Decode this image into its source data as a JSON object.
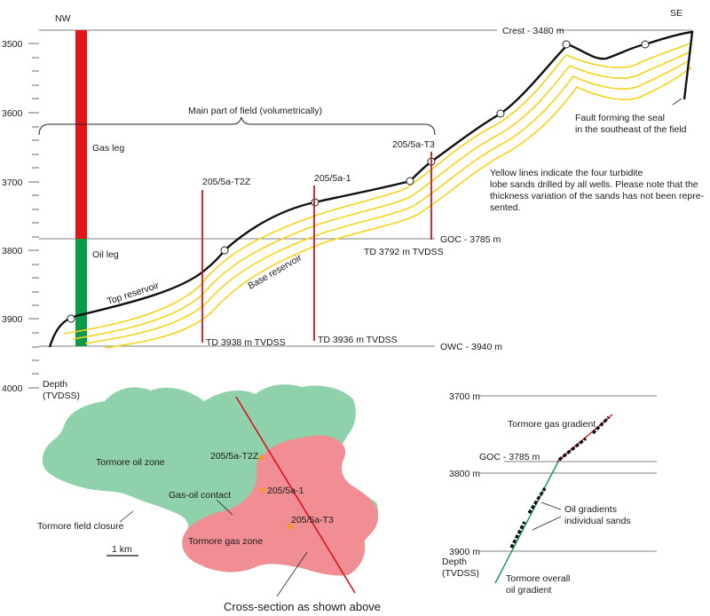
{
  "section": {
    "nw": "NW",
    "se": "SE",
    "depth_ticks": [
      "3500",
      "3600",
      "3700",
      "3800",
      "3900",
      "4000"
    ],
    "depth_label_1": "Depth",
    "depth_label_2": "(TVDSS)",
    "crest": "Crest - 3480 m",
    "goc": "GOC - 3785 m",
    "owc": "OWC - 3940 m",
    "main_part": "Main part of field (volumetrically)",
    "gas_leg": "Gas leg",
    "oil_leg": "Oil leg",
    "top_reservoir": "Top reservoir",
    "base_reservoir": "Base reservoir",
    "fault_1": "Fault forming the seal",
    "fault_2": "in the southeast of the field",
    "note_1": "Yellow lines indicate the four turbidite",
    "note_2": "lobe sands drilled by all wells. Please note that the",
    "note_3": "thickness variation of the sands has not been repre-",
    "note_4": "sented.",
    "wells": [
      {
        "name": "205/5a-T2Z",
        "td": "TD 3938 m TVDSS"
      },
      {
        "name": "205/5a-1",
        "td": "TD 3936 m TVDSS"
      },
      {
        "name": "205/5a-T3",
        "td": "TD 3792 m TVDSS"
      }
    ],
    "colors": {
      "gas": "#e3151b",
      "oil": "#0b9a48",
      "sand": "#f5d31b",
      "well": "#d7141e"
    }
  },
  "map": {
    "oil_zone": "Tormore oil zone",
    "gas_zone": "Tormore gas zone",
    "gas_oil_contact": "Gas-oil contact",
    "closure": "Tormore field closure",
    "scale": "1 km",
    "cross_section": "Cross-section as shown above",
    "wells": [
      "205/5a-T2Z",
      "205/5a-1",
      "205/5a-T3"
    ],
    "colors": {
      "oil": "#8fd1aa",
      "gas": "#f08e93"
    }
  },
  "gradient": {
    "ticks": [
      "3700 m",
      "3800 m",
      "3900 m"
    ],
    "goc": "GOC - 3785 m",
    "gas_gradient": "Tormore gas gradient",
    "oil_gradients_1": "Oil gradients",
    "oil_gradients_2": "individual sands",
    "overall_1": "Tormore overall",
    "overall_2": "oil gradient",
    "depth_1": "Depth",
    "depth_2": "(TVDSS)"
  }
}
